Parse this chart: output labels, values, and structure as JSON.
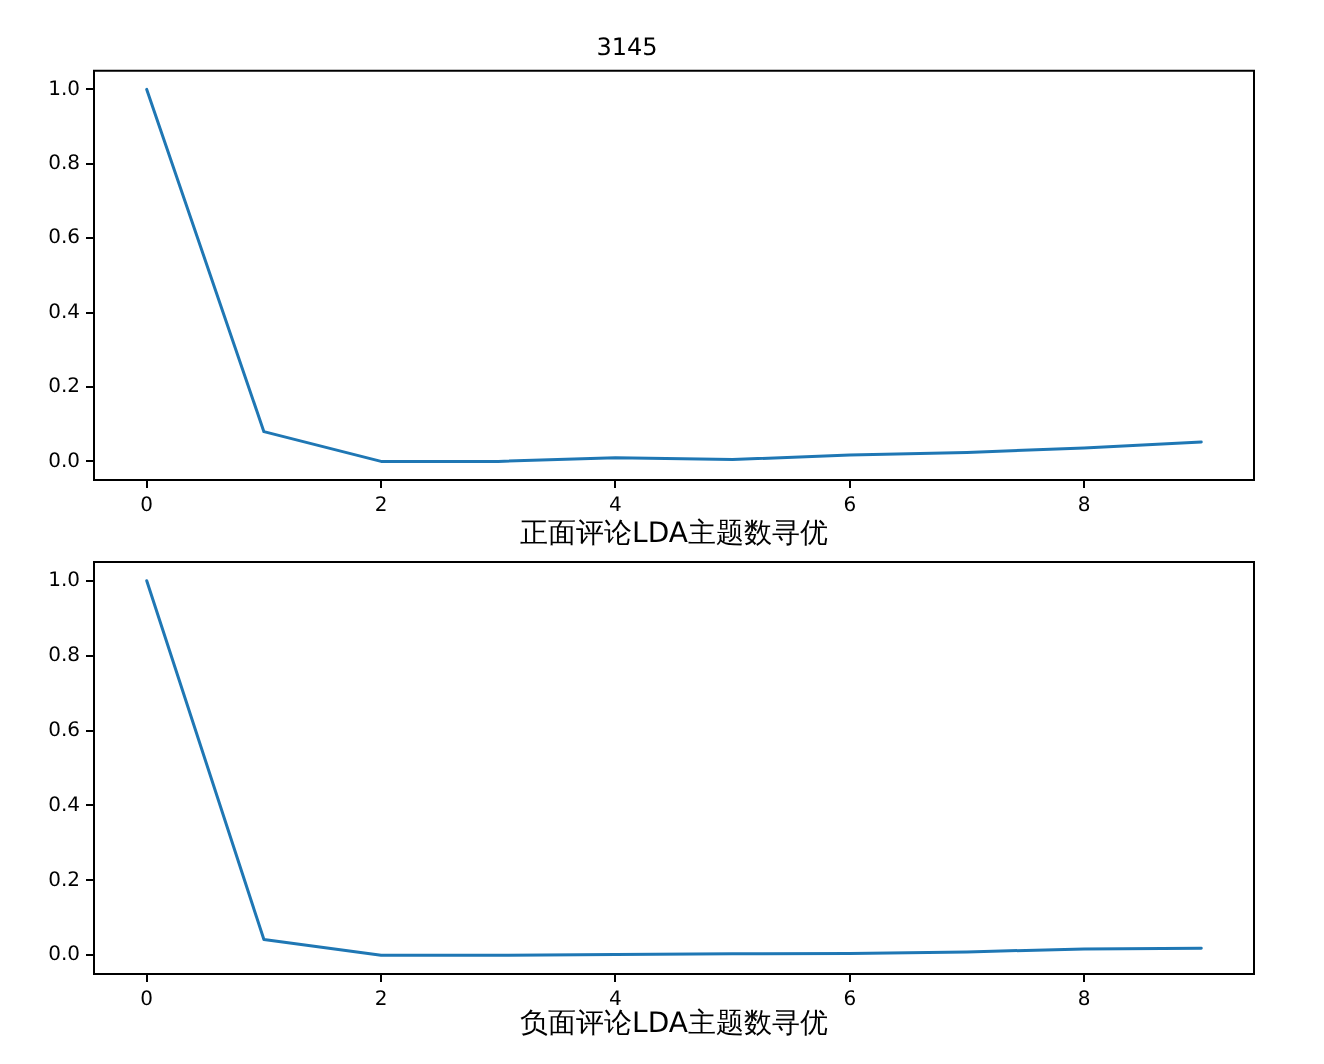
{
  "chart_data": [
    {
      "type": "line",
      "title": "3145",
      "xlabel": "正面评论LDA主题数寻优",
      "x": [
        0,
        1,
        2,
        3,
        4,
        5,
        6,
        7,
        8,
        9
      ],
      "values": [
        1,
        0.08,
        0,
        0,
        0.01,
        0.005,
        0.017,
        0.024,
        0.036,
        0.052
      ],
      "color": "#1f77b4",
      "xlim": [
        -0.45,
        9.45
      ],
      "xticks": [
        0,
        2,
        4,
        6,
        8
      ],
      "ylim": [
        -0.05,
        1.05
      ],
      "yticks": [
        {
          "value": 0,
          "label": "0.0"
        },
        {
          "value": 0.2,
          "label": "0.2"
        },
        {
          "value": 0.4,
          "label": "0.4"
        },
        {
          "value": 0.6,
          "label": "0.6"
        },
        {
          "value": 0.8,
          "label": "0.8"
        },
        {
          "value": 1,
          "label": "1.0"
        }
      ]
    },
    {
      "type": "line",
      "xlabel": "负面评论LDA主题数寻优",
      "x": [
        0,
        1,
        2,
        3,
        4,
        5,
        6,
        7,
        8,
        9
      ],
      "values": [
        1,
        0.042,
        0,
        0,
        0.002,
        0.004,
        0.005,
        0.009,
        0.017,
        0.019
      ],
      "color": "#1f77b4",
      "xlim": [
        -0.45,
        9.45
      ],
      "xticks": [
        0,
        2,
        4,
        6,
        8
      ],
      "ylim": [
        -0.05,
        1.05
      ],
      "yticks": [
        {
          "value": 0,
          "label": "0.0"
        },
        {
          "value": 0.2,
          "label": "0.2"
        },
        {
          "value": 0.4,
          "label": "0.4"
        },
        {
          "value": 0.6,
          "label": "0.6"
        },
        {
          "value": 0.8,
          "label": "0.8"
        },
        {
          "value": 1,
          "label": "1.0"
        }
      ]
    }
  ]
}
